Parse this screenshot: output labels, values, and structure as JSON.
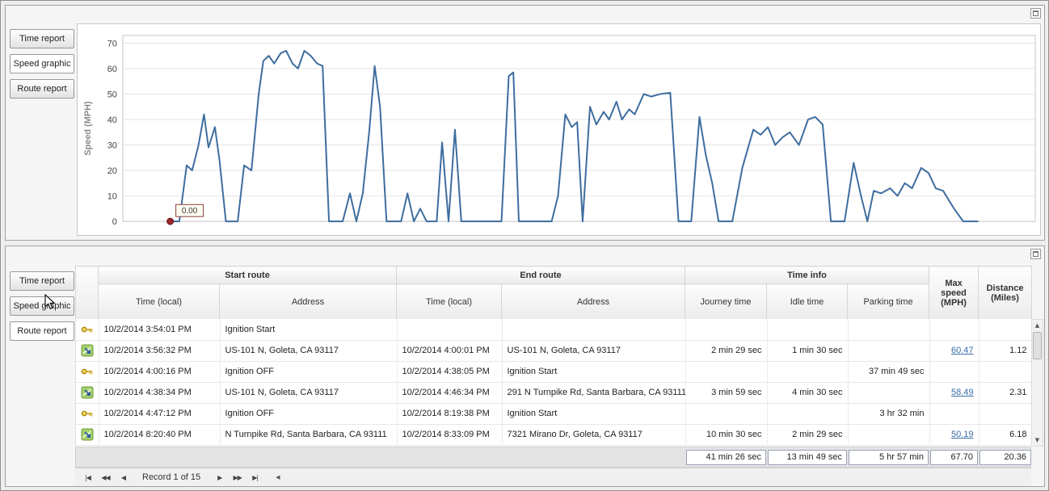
{
  "icons": {
    "first": "|◀",
    "prev_page": "◀◀",
    "prev": "◀",
    "next": "▶",
    "next_page": "▶▶",
    "last": "▶|",
    "scroll_up": "▲",
    "scroll_down": "▼",
    "scroll_left": "◀"
  },
  "colors": {
    "chart_line": "#3e6d9f",
    "marker": "#99262a",
    "link": "#3a6ca5"
  },
  "tabs": {
    "labels": [
      "Time report",
      "Speed graphic",
      "Route report"
    ]
  },
  "chart_data": {
    "type": "line",
    "title": "",
    "ylabel": "Speed (MPH)",
    "xlabel": "",
    "yticks": [
      0,
      10,
      20,
      30,
      40,
      50,
      60,
      70
    ],
    "ylim": [
      0,
      73
    ],
    "xlim": [
      0,
      1
    ],
    "grid": true,
    "legend": "none",
    "annotation": {
      "label": "0.00",
      "x": 0.052,
      "y": 0
    },
    "points": [
      [
        0.052,
        0
      ],
      [
        0.062,
        0
      ],
      [
        0.07,
        22
      ],
      [
        0.076,
        20
      ],
      [
        0.083,
        30
      ],
      [
        0.089,
        42
      ],
      [
        0.094,
        29
      ],
      [
        0.101,
        37
      ],
      [
        0.106,
        24
      ],
      [
        0.113,
        0
      ],
      [
        0.126,
        0
      ],
      [
        0.133,
        22
      ],
      [
        0.141,
        20
      ],
      [
        0.149,
        50
      ],
      [
        0.154,
        63
      ],
      [
        0.16,
        65
      ],
      [
        0.166,
        62
      ],
      [
        0.173,
        66
      ],
      [
        0.179,
        67
      ],
      [
        0.186,
        62
      ],
      [
        0.192,
        60
      ],
      [
        0.199,
        67
      ],
      [
        0.206,
        65
      ],
      [
        0.213,
        62
      ],
      [
        0.219,
        61
      ],
      [
        0.226,
        0
      ],
      [
        0.241,
        0
      ],
      [
        0.249,
        11
      ],
      [
        0.256,
        0
      ],
      [
        0.263,
        11
      ],
      [
        0.27,
        35
      ],
      [
        0.276,
        61
      ],
      [
        0.282,
        45
      ],
      [
        0.289,
        0
      ],
      [
        0.305,
        0
      ],
      [
        0.312,
        11
      ],
      [
        0.319,
        0
      ],
      [
        0.326,
        5
      ],
      [
        0.333,
        0
      ],
      [
        0.344,
        0
      ],
      [
        0.35,
        31
      ],
      [
        0.357,
        0
      ],
      [
        0.364,
        36
      ],
      [
        0.371,
        0
      ],
      [
        0.415,
        0
      ],
      [
        0.423,
        57
      ],
      [
        0.428,
        58.5
      ],
      [
        0.434,
        0
      ],
      [
        0.47,
        0
      ],
      [
        0.477,
        10
      ],
      [
        0.485,
        42
      ],
      [
        0.492,
        37
      ],
      [
        0.498,
        39
      ],
      [
        0.504,
        0
      ],
      [
        0.512,
        45
      ],
      [
        0.519,
        38
      ],
      [
        0.527,
        43
      ],
      [
        0.533,
        40
      ],
      [
        0.541,
        47
      ],
      [
        0.547,
        40
      ],
      [
        0.555,
        44
      ],
      [
        0.561,
        42
      ],
      [
        0.571,
        50
      ],
      [
        0.579,
        49
      ],
      [
        0.589,
        50
      ],
      [
        0.6,
        50.5
      ],
      [
        0.609,
        0
      ],
      [
        0.623,
        0
      ],
      [
        0.632,
        41
      ],
      [
        0.639,
        26
      ],
      [
        0.646,
        15
      ],
      [
        0.653,
        0
      ],
      [
        0.668,
        0
      ],
      [
        0.679,
        21
      ],
      [
        0.691,
        36
      ],
      [
        0.699,
        34
      ],
      [
        0.707,
        37
      ],
      [
        0.715,
        30
      ],
      [
        0.723,
        33
      ],
      [
        0.731,
        35
      ],
      [
        0.741,
        30
      ],
      [
        0.751,
        40
      ],
      [
        0.759,
        41
      ],
      [
        0.767,
        38
      ],
      [
        0.776,
        0
      ],
      [
        0.791,
        0
      ],
      [
        0.801,
        23
      ],
      [
        0.809,
        10
      ],
      [
        0.816,
        0
      ],
      [
        0.823,
        12
      ],
      [
        0.831,
        11
      ],
      [
        0.841,
        13
      ],
      [
        0.849,
        10
      ],
      [
        0.857,
        15
      ],
      [
        0.865,
        13
      ],
      [
        0.875,
        21
      ],
      [
        0.883,
        19
      ],
      [
        0.891,
        13
      ],
      [
        0.899,
        12
      ],
      [
        0.911,
        5
      ],
      [
        0.921,
        0
      ],
      [
        0.937,
        0
      ]
    ]
  },
  "table": {
    "groups": [
      "Start route",
      "End route",
      "Time info"
    ],
    "columns": [
      "Time (local)",
      "Address",
      "Time (local)",
      "Address",
      "Journey time",
      "Idle time",
      "Parking time",
      "Max speed (MPH)",
      "Distance (Miles)"
    ],
    "rows": [
      {
        "icon": "key",
        "start_time": "10/2/2014 3:54:01 PM",
        "start_address": "Ignition Start",
        "end_time": "",
        "end_address": "",
        "journey": "",
        "idle": "",
        "parking": "",
        "max_speed": "",
        "distance": ""
      },
      {
        "icon": "route",
        "start_time": "10/2/2014 3:56:32 PM",
        "start_address": "US-101 N, Goleta, CA 93117",
        "end_time": "10/2/2014 4:00:01 PM",
        "end_address": "US-101 N, Goleta, CA 93117",
        "journey": "2 min 29 sec",
        "idle": "1 min 30 sec",
        "parking": "",
        "max_speed": "60.47",
        "distance": "1.12"
      },
      {
        "icon": "key",
        "start_time": "10/2/2014 4:00:16 PM",
        "start_address": "Ignition OFF",
        "end_time": "10/2/2014 4:38:05 PM",
        "end_address": "Ignition Start",
        "journey": "",
        "idle": "",
        "parking": "37 min 49 sec",
        "max_speed": "",
        "distance": ""
      },
      {
        "icon": "route",
        "start_time": "10/2/2014 4:38:34 PM",
        "start_address": "US-101 N, Goleta, CA 93117",
        "end_time": "10/2/2014 4:46:34 PM",
        "end_address": "291 N Turnpike Rd, Santa Barbara, CA 93111",
        "journey": "3 min 59 sec",
        "idle": "4 min 30 sec",
        "parking": "",
        "max_speed": "58.49",
        "distance": "2.31"
      },
      {
        "icon": "key",
        "start_time": "10/2/2014 4:47:12 PM",
        "start_address": "Ignition OFF",
        "end_time": "10/2/2014 8:19:38 PM",
        "end_address": "Ignition Start",
        "journey": "",
        "idle": "",
        "parking": "3 hr 32 min",
        "max_speed": "",
        "distance": ""
      },
      {
        "icon": "route",
        "start_time": "10/2/2014 8:20:40 PM",
        "start_address": "N Turnpike Rd, Santa Barbara, CA 93111",
        "end_time": "10/2/2014 8:33:09 PM",
        "end_address": "7321 Mirano Dr, Goleta, CA 93117",
        "journey": "10 min 30 sec",
        "idle": "2 min 29 sec",
        "parking": "",
        "max_speed": "50.19",
        "distance": "6.18"
      }
    ],
    "summary": {
      "journey": "41 min 26 sec",
      "idle": "13 min 49 sec",
      "parking": "5 hr 57 min",
      "max_speed": "67.70",
      "distance": "20.36"
    },
    "pager_text": "Record 1 of 15"
  }
}
